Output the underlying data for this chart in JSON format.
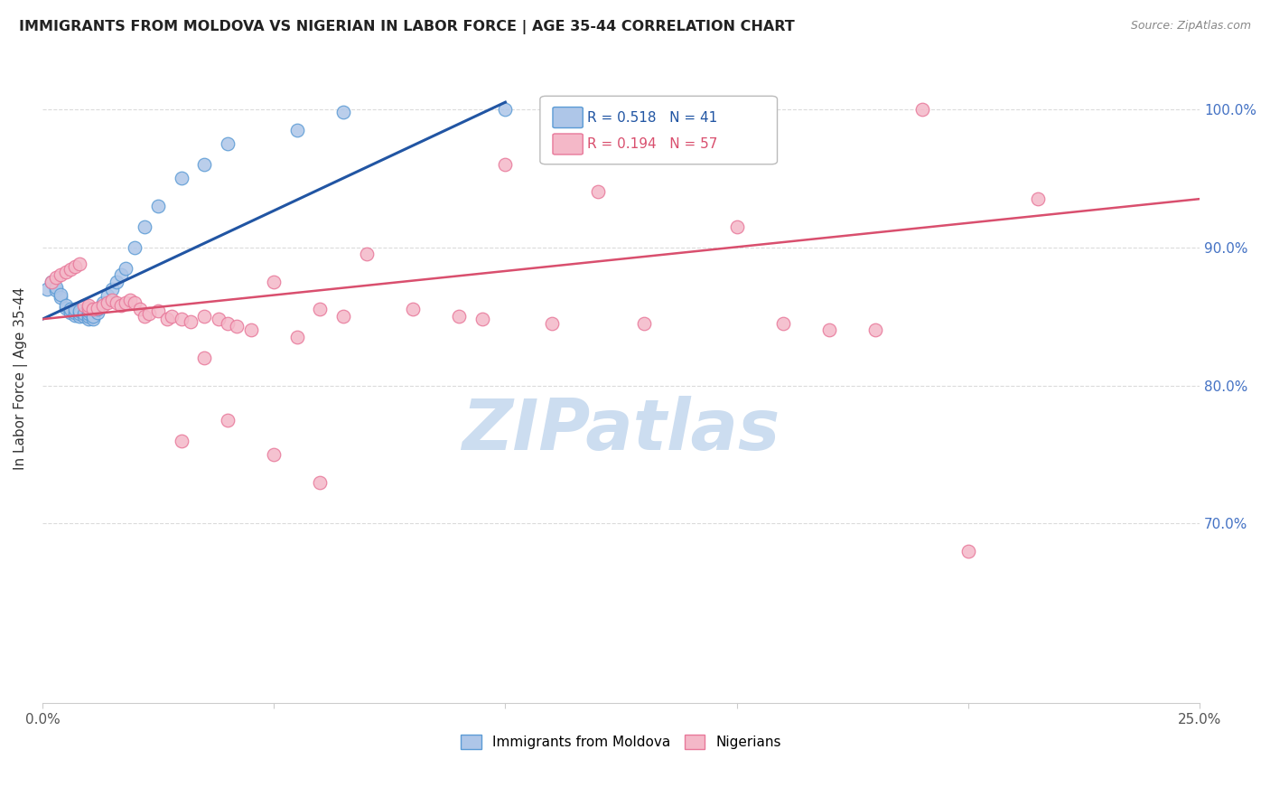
{
  "title": "IMMIGRANTS FROM MOLDOVA VS NIGERIAN IN LABOR FORCE | AGE 35-44 CORRELATION CHART",
  "source": "Source: ZipAtlas.com",
  "ylabel": "In Labor Force | Age 35-44",
  "xlim": [
    0.0,
    0.25
  ],
  "ylim": [
    0.57,
    1.04
  ],
  "ytick_values": [
    1.0,
    0.9,
    0.8,
    0.7
  ],
  "ytick_labels": [
    "100.0%",
    "90.0%",
    "80.0%",
    "70.0%"
  ],
  "xtick_values": [
    0.0,
    0.05,
    0.1,
    0.15,
    0.2,
    0.25
  ],
  "xtick_labels": [
    "0.0%",
    "",
    "",
    "",
    "",
    "25.0%"
  ],
  "legend_labels": [
    "Immigrants from Moldova",
    "Nigerians"
  ],
  "moldova_color": "#aec6e8",
  "nigerian_color": "#f4b8c8",
  "moldova_edge_color": "#5b9bd5",
  "nigerian_edge_color": "#e8789a",
  "moldova_line_color": "#2155a3",
  "nigerian_line_color": "#d94f6e",
  "watermark_color": "#ccddf0",
  "R_moldova": 0.518,
  "N_moldova": 41,
  "R_nigerian": 0.194,
  "N_nigerian": 57,
  "moldova_x": [
    0.001,
    0.002,
    0.003,
    0.003,
    0.004,
    0.004,
    0.005,
    0.005,
    0.006,
    0.006,
    0.007,
    0.007,
    0.007,
    0.008,
    0.008,
    0.008,
    0.009,
    0.009,
    0.01,
    0.01,
    0.01,
    0.01,
    0.011,
    0.011,
    0.012,
    0.012,
    0.013,
    0.014,
    0.015,
    0.016,
    0.017,
    0.018,
    0.02,
    0.022,
    0.025,
    0.03,
    0.035,
    0.04,
    0.055,
    0.065,
    0.1
  ],
  "moldova_y": [
    0.87,
    0.875,
    0.869,
    0.871,
    0.864,
    0.866,
    0.856,
    0.858,
    0.853,
    0.855,
    0.851,
    0.853,
    0.855,
    0.85,
    0.852,
    0.854,
    0.85,
    0.852,
    0.848,
    0.85,
    0.852,
    0.854,
    0.848,
    0.85,
    0.853,
    0.855,
    0.86,
    0.865,
    0.87,
    0.875,
    0.88,
    0.885,
    0.9,
    0.915,
    0.93,
    0.95,
    0.96,
    0.975,
    0.985,
    0.998,
    1.0
  ],
  "nigerian_x": [
    0.002,
    0.003,
    0.004,
    0.005,
    0.006,
    0.007,
    0.008,
    0.009,
    0.01,
    0.01,
    0.011,
    0.012,
    0.013,
    0.014,
    0.015,
    0.016,
    0.017,
    0.018,
    0.019,
    0.02,
    0.021,
    0.022,
    0.023,
    0.025,
    0.027,
    0.028,
    0.03,
    0.032,
    0.035,
    0.038,
    0.04,
    0.042,
    0.045,
    0.05,
    0.055,
    0.06,
    0.065,
    0.07,
    0.08,
    0.09,
    0.095,
    0.1,
    0.11,
    0.12,
    0.13,
    0.15,
    0.16,
    0.17,
    0.18,
    0.19,
    0.03,
    0.035,
    0.04,
    0.05,
    0.06,
    0.2,
    0.215
  ],
  "nigerian_y": [
    0.875,
    0.878,
    0.88,
    0.882,
    0.884,
    0.886,
    0.888,
    0.858,
    0.856,
    0.858,
    0.855,
    0.856,
    0.858,
    0.86,
    0.862,
    0.86,
    0.858,
    0.86,
    0.862,
    0.86,
    0.855,
    0.85,
    0.852,
    0.854,
    0.848,
    0.85,
    0.848,
    0.846,
    0.85,
    0.848,
    0.845,
    0.843,
    0.84,
    0.875,
    0.835,
    0.855,
    0.85,
    0.895,
    0.855,
    0.85,
    0.848,
    0.96,
    0.845,
    0.94,
    0.845,
    0.915,
    0.845,
    0.84,
    0.84,
    1.0,
    0.76,
    0.82,
    0.775,
    0.75,
    0.73,
    0.68,
    0.935
  ],
  "moldova_trend_x": [
    0.0,
    0.1
  ],
  "moldova_trend_y": [
    0.848,
    1.005
  ],
  "nigerian_trend_x": [
    0.0,
    0.25
  ],
  "nigerian_trend_y": [
    0.848,
    0.935
  ]
}
